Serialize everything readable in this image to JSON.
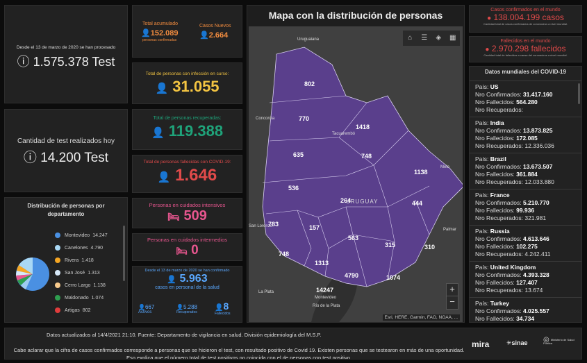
{
  "left": {
    "since_label": "Desde el 13 de marzo de 2020 se han procesado",
    "total_tests": "1.575.378 Test",
    "today_label": "Cantidad de test realizados hoy",
    "today_tests": "14.200 Test",
    "dist_title": "Distribución de personas por departamento",
    "legend": [
      {
        "name": "Montevideo",
        "value": "14.247",
        "color": "#4a90e2"
      },
      {
        "name": "Canelones",
        "value": "4.790",
        "color": "#a9d8f5"
      },
      {
        "name": "Rivera",
        "value": "1.418",
        "color": "#f5a623"
      },
      {
        "name": "San José",
        "value": "1.313",
        "color": "#d7e8f7"
      },
      {
        "name": "Cerro Largo",
        "value": "1.138",
        "color": "#f7c98b"
      },
      {
        "name": "Maldonado",
        "value": "1.074",
        "color": "#2e9e4f"
      },
      {
        "name": "Artigas",
        "value": "802",
        "color": "#e03c3c"
      }
    ]
  },
  "mid": {
    "acumulado_label": "Total acumulado",
    "acumulado": "152.089",
    "acumulado_sub": "personas confirmadas",
    "nuevos_label": "Casos Nuevos",
    "nuevos": "2.664",
    "curso_label": "Total de personas con infección en curso:",
    "curso": "31.055",
    "recuperadas_label": "Total de personas recuperadas:",
    "recuperadas": "119.388",
    "fallecidas_label": "Total de personas fallecidas con COVID-19:",
    "fallecidas": "1.646",
    "intensivos_label": "Personas en cuidados intensivos",
    "intensivos": "509",
    "intermedios_label": "Personas en cuidados intermedios",
    "intermedios": "0",
    "salud_since": "Desde el 13 de marzo de 2020 se han confirmado",
    "salud_total": "5.963",
    "salud_label": "casos en personal de la salud",
    "activos": "667",
    "activos_label": "Activos",
    "recuperados": "5.288",
    "recuperados_label": "Recuperados",
    "fallecidos": "8",
    "fallecidos_label": "Fallecidos"
  },
  "map": {
    "title": "Mapa con la distribución de personas",
    "attribution": "Esri, HERE, Garmin, FAO, NOAA, ...",
    "uruguay_label": "URUGUAY",
    "places": [
      "Uruguaiana",
      "Concordia",
      "Tacuarembó",
      "Melo",
      "La Plata",
      "Montevideo",
      "Río de la Plata",
      "San Lorenzo",
      "Palmar"
    ],
    "counts": [
      "802",
      "770",
      "1418",
      "635",
      "748",
      "1138",
      "536",
      "264",
      "444",
      "783",
      "157",
      "563",
      "315",
      "310",
      "748",
      "1313",
      "4790",
      "1074",
      "14247"
    ],
    "zoom_in": "+",
    "zoom_out": "−"
  },
  "right": {
    "world_conf_label": "Casos confirmados en el mundo",
    "world_conf": "138.004.199 casos",
    "world_conf_sub": "Cantidad total de casos confirmados de coronavirus a nivel mundial.",
    "world_dead_label": "Fallecidos en el mundo",
    "world_dead": "2.970.298 fallecidos",
    "world_dead_sub": "Cantidad total de fallecidos a causa del coronavirus a nivel mundial.",
    "list_title": "Datos mundiales del COVID-19",
    "countries": [
      {
        "pais": "US",
        "conf": "31.417.160",
        "fall": "564.280",
        "rec": ""
      },
      {
        "pais": "India",
        "conf": "13.873.825",
        "fall": "172.085",
        "rec": "12.336.036"
      },
      {
        "pais": "Brazil",
        "conf": "13.673.507",
        "fall": "361.884",
        "rec": "12.033.880"
      },
      {
        "pais": "France",
        "conf": "5.210.770",
        "fall": "99.936",
        "rec": "321.981"
      },
      {
        "pais": "Russia",
        "conf": "4.613.646",
        "fall": "102.275",
        "rec": "4.242.411"
      },
      {
        "pais": "United Kingdom",
        "conf": "4.393.328",
        "fall": "127.407",
        "rec": "13.674"
      },
      {
        "pais": "Turkey",
        "conf": "4.025.557",
        "fall": "34.734",
        "rec": "3.480.146"
      }
    ]
  },
  "footer": {
    "updated": "Datos actualizados al 14/4/2021 21:10. Fuente: Departamento de vigilancia en salud. División epidemiología del M.S.P.",
    "note": "Cabe aclarar que la cifra de casos confirmados corresponde a personas que se hicieron el test, con resultado positivo de Covid 19. Existen personas que se testearon en más de una oportunidad. Eso explica que el número total de test positivos no coincida con el de personas con test positivo.",
    "logo1": "mira",
    "logo2": "sinae",
    "logo3": "Ministerio de Salud Pública"
  }
}
